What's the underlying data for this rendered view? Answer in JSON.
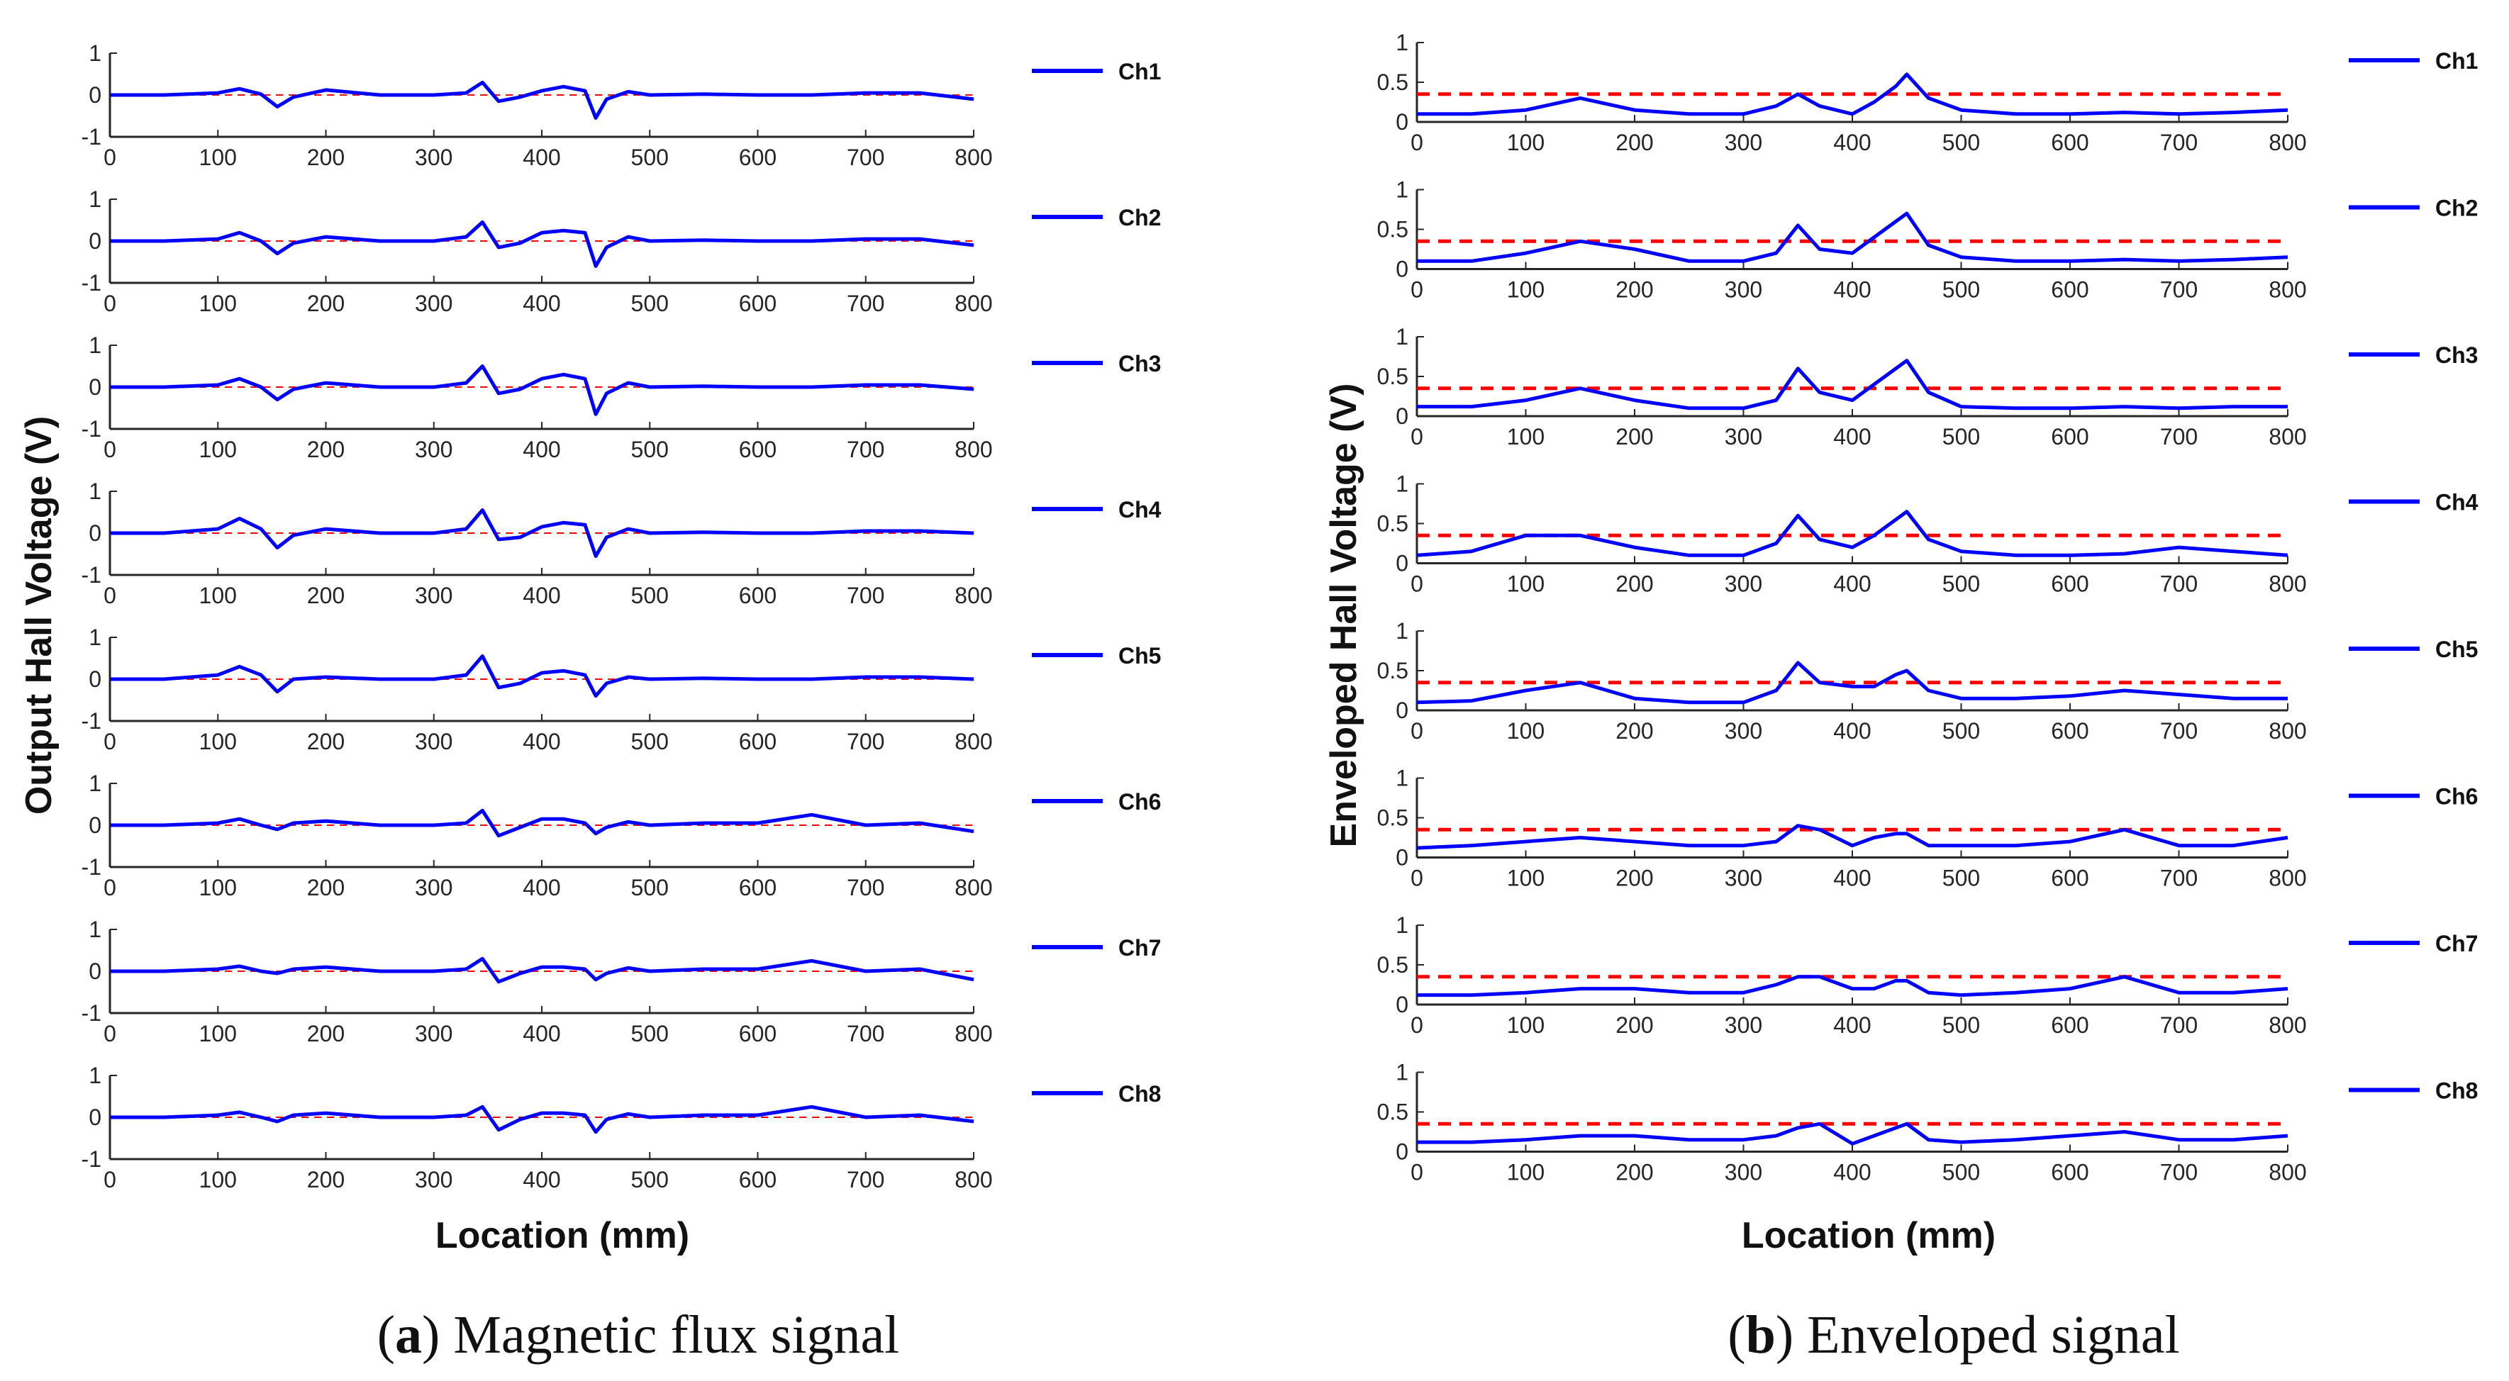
{
  "chart_data": [
    {
      "type": "line",
      "panel": "a",
      "caption_letter": "a",
      "caption_text": "Magnetic flux signal",
      "xlabel": "Location (mm)",
      "ylabel": "Output Hall Voltage (V)",
      "xlim": [
        0,
        800
      ],
      "ylim": [
        -1,
        1
      ],
      "xticks": [
        "0",
        "100",
        "200",
        "300",
        "400",
        "500",
        "600",
        "700",
        "800"
      ],
      "yticks": [
        "-1",
        "0",
        "1"
      ],
      "threshold": 0,
      "threshold_color": "#ff0000",
      "line_color": "#0000ff",
      "x": [
        0,
        50,
        100,
        120,
        140,
        155,
        170,
        200,
        250,
        300,
        330,
        345,
        360,
        380,
        400,
        420,
        440,
        450,
        460,
        480,
        500,
        550,
        600,
        650,
        700,
        750,
        800
      ],
      "series": [
        {
          "name": "Ch1",
          "values": [
            0,
            0,
            0.05,
            0.15,
            0.02,
            -0.28,
            -0.05,
            0.12,
            0,
            0,
            0.05,
            0.3,
            -0.15,
            -0.05,
            0.1,
            0.2,
            0.1,
            -0.55,
            -0.1,
            0.08,
            0,
            0.02,
            0,
            0,
            0.05,
            0.05,
            -0.1
          ]
        },
        {
          "name": "Ch2",
          "values": [
            0,
            0,
            0.05,
            0.2,
            0,
            -0.3,
            -0.05,
            0.1,
            0,
            0,
            0.1,
            0.45,
            -0.15,
            -0.05,
            0.2,
            0.25,
            0.2,
            -0.6,
            -0.15,
            0.1,
            0,
            0.02,
            0,
            0,
            0.05,
            0.05,
            -0.1
          ]
        },
        {
          "name": "Ch3",
          "values": [
            0,
            0,
            0.05,
            0.2,
            0,
            -0.3,
            -0.05,
            0.1,
            0,
            0,
            0.1,
            0.5,
            -0.15,
            -0.05,
            0.2,
            0.3,
            0.2,
            -0.65,
            -0.15,
            0.1,
            0,
            0.02,
            0,
            0,
            0.05,
            0.05,
            -0.05
          ]
        },
        {
          "name": "Ch4",
          "values": [
            0,
            0,
            0.1,
            0.35,
            0.1,
            -0.35,
            -0.05,
            0.1,
            0,
            0,
            0.1,
            0.55,
            -0.15,
            -0.1,
            0.15,
            0.25,
            0.2,
            -0.55,
            -0.1,
            0.1,
            0,
            0.02,
            0,
            0,
            0.05,
            0.05,
            0
          ]
        },
        {
          "name": "Ch5",
          "values": [
            0,
            0,
            0.1,
            0.3,
            0.1,
            -0.3,
            0,
            0.05,
            0,
            0,
            0.1,
            0.55,
            -0.2,
            -0.1,
            0.15,
            0.2,
            0.1,
            -0.4,
            -0.1,
            0.05,
            0,
            0.02,
            0,
            0,
            0.05,
            0.05,
            0
          ]
        },
        {
          "name": "Ch6",
          "values": [
            0,
            0,
            0.05,
            0.15,
            0,
            -0.1,
            0.05,
            0.1,
            0,
            0,
            0.05,
            0.35,
            -0.25,
            -0.05,
            0.15,
            0.15,
            0.05,
            -0.2,
            -0.05,
            0.08,
            0,
            0.05,
            0.05,
            0.25,
            0,
            0.05,
            -0.15
          ]
        },
        {
          "name": "Ch7",
          "values": [
            0,
            0,
            0.05,
            0.12,
            0,
            -0.05,
            0.05,
            0.1,
            0,
            0,
            0.05,
            0.3,
            -0.25,
            -0.05,
            0.1,
            0.1,
            0.05,
            -0.2,
            -0.05,
            0.08,
            0,
            0.05,
            0.05,
            0.25,
            0,
            0.05,
            -0.2
          ]
        },
        {
          "name": "Ch8",
          "values": [
            0,
            0,
            0.05,
            0.12,
            0,
            -0.1,
            0.05,
            0.1,
            0,
            0,
            0.05,
            0.25,
            -0.3,
            -0.05,
            0.1,
            0.1,
            0.05,
            -0.35,
            -0.05,
            0.08,
            0,
            0.05,
            0.05,
            0.25,
            0,
            0.05,
            -0.1
          ]
        }
      ]
    },
    {
      "type": "line",
      "panel": "b",
      "caption_letter": "b",
      "caption_text": "Enveloped signal",
      "xlabel": "Location (mm)",
      "ylabel": "Enveloped Hall Voltage (V)",
      "xlim": [
        0,
        800
      ],
      "ylim": [
        0,
        1
      ],
      "xticks": [
        "0",
        "100",
        "200",
        "300",
        "400",
        "500",
        "600",
        "700",
        "800"
      ],
      "yticks": [
        "0",
        "0.5",
        "1"
      ],
      "threshold": 0.35,
      "threshold_color": "#ff0000",
      "line_color": "#0000ff",
      "x": [
        0,
        50,
        100,
        150,
        200,
        250,
        300,
        330,
        350,
        370,
        400,
        420,
        440,
        450,
        470,
        500,
        550,
        600,
        650,
        700,
        750,
        800
      ],
      "series": [
        {
          "name": "Ch1",
          "values": [
            0.1,
            0.1,
            0.15,
            0.3,
            0.15,
            0.1,
            0.1,
            0.2,
            0.35,
            0.2,
            0.1,
            0.25,
            0.45,
            0.6,
            0.3,
            0.15,
            0.1,
            0.1,
            0.12,
            0.1,
            0.12,
            0.15
          ]
        },
        {
          "name": "Ch2",
          "values": [
            0.1,
            0.1,
            0.2,
            0.35,
            0.25,
            0.1,
            0.1,
            0.2,
            0.55,
            0.25,
            0.2,
            0.4,
            0.6,
            0.7,
            0.3,
            0.15,
            0.1,
            0.1,
            0.12,
            0.1,
            0.12,
            0.15
          ]
        },
        {
          "name": "Ch3",
          "values": [
            0.12,
            0.12,
            0.2,
            0.35,
            0.2,
            0.1,
            0.1,
            0.2,
            0.6,
            0.3,
            0.2,
            0.4,
            0.6,
            0.7,
            0.3,
            0.12,
            0.1,
            0.1,
            0.12,
            0.1,
            0.12,
            0.12
          ]
        },
        {
          "name": "Ch4",
          "values": [
            0.1,
            0.15,
            0.35,
            0.35,
            0.2,
            0.1,
            0.1,
            0.25,
            0.6,
            0.3,
            0.2,
            0.35,
            0.55,
            0.65,
            0.3,
            0.15,
            0.1,
            0.1,
            0.12,
            0.2,
            0.15,
            0.1
          ]
        },
        {
          "name": "Ch5",
          "values": [
            0.1,
            0.12,
            0.25,
            0.35,
            0.15,
            0.1,
            0.1,
            0.25,
            0.6,
            0.35,
            0.3,
            0.3,
            0.45,
            0.5,
            0.25,
            0.15,
            0.15,
            0.18,
            0.25,
            0.2,
            0.15,
            0.15
          ]
        },
        {
          "name": "Ch6",
          "values": [
            0.12,
            0.15,
            0.2,
            0.25,
            0.2,
            0.15,
            0.15,
            0.2,
            0.4,
            0.35,
            0.15,
            0.25,
            0.3,
            0.3,
            0.15,
            0.15,
            0.15,
            0.2,
            0.35,
            0.15,
            0.15,
            0.25
          ]
        },
        {
          "name": "Ch7",
          "values": [
            0.12,
            0.12,
            0.15,
            0.2,
            0.2,
            0.15,
            0.15,
            0.25,
            0.35,
            0.35,
            0.2,
            0.2,
            0.3,
            0.3,
            0.15,
            0.12,
            0.15,
            0.2,
            0.35,
            0.15,
            0.15,
            0.2
          ]
        },
        {
          "name": "Ch8",
          "values": [
            0.12,
            0.12,
            0.15,
            0.2,
            0.2,
            0.15,
            0.15,
            0.2,
            0.3,
            0.35,
            0.1,
            0.2,
            0.3,
            0.35,
            0.15,
            0.12,
            0.15,
            0.2,
            0.25,
            0.15,
            0.15,
            0.2
          ]
        }
      ]
    }
  ]
}
